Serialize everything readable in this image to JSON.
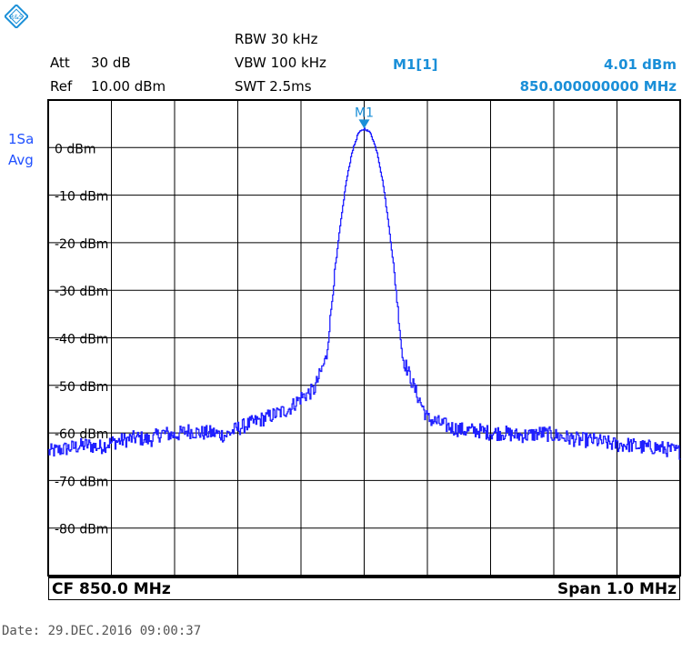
{
  "header": {
    "rbw": "RBW 30 kHz",
    "vbw": "VBW 100 kHz",
    "swt": "SWT 2.5ms",
    "att_label": "Att",
    "att_value": "30 dB",
    "ref_label": "Ref",
    "ref_value": "10.00 dBm"
  },
  "marker": {
    "id": "M1[1]",
    "level": "4.01 dBm",
    "frequency": "850.000000000 MHz",
    "flag": "M1"
  },
  "trace": {
    "line1": "1Sa",
    "line2": "Avg"
  },
  "footer": {
    "cf": "CF 850.0 MHz",
    "span": "Span 1.0 MHz"
  },
  "date": "Date: 29.DEC.2016  09:00:37",
  "colors": {
    "trace": "#1f1fff",
    "marker": "#1a8fd8",
    "grid": "#000000"
  },
  "chart_data": {
    "type": "line",
    "x_center_mhz": 850.0,
    "span_mhz": 1.0,
    "x_range_mhz": [
      849.5,
      850.5
    ],
    "y_range_dbm": [
      -90,
      10
    ],
    "y_ticks": [
      "0 dBm",
      "-10 dBm",
      "-20 dBm",
      "-30 dBm",
      "-40 dBm",
      "-50 dBm",
      "-60 dBm",
      "-70 dBm",
      "-80 dBm"
    ],
    "y_tick_values": [
      0,
      -10,
      -20,
      -30,
      -40,
      -50,
      -60,
      -70,
      -80
    ],
    "grid": true,
    "series": [
      {
        "x": [
          849.5,
          849.52,
          849.54,
          849.56,
          849.58,
          849.6,
          849.62,
          849.64,
          849.66,
          849.68,
          849.7,
          849.72,
          849.74,
          849.76,
          849.78,
          849.8,
          849.82,
          849.84,
          849.86,
          849.88,
          849.9,
          849.92,
          849.94,
          849.95,
          849.96,
          849.97,
          849.98,
          849.99,
          850.0,
          850.01,
          850.02,
          850.03,
          850.04,
          850.05,
          850.06,
          850.08,
          850.1,
          850.12,
          850.14,
          850.16,
          850.18,
          850.2,
          850.22,
          850.24,
          850.26,
          850.28,
          850.3,
          850.32,
          850.34,
          850.36,
          850.38,
          850.4,
          850.42,
          850.44,
          850.46,
          850.48,
          850.5
        ],
        "y": [
          -64,
          -63.5,
          -63,
          -62.5,
          -63,
          -62,
          -61.5,
          -61,
          -61.5,
          -60,
          -60.5,
          -59.5,
          -60,
          -60,
          -60.5,
          -59,
          -58,
          -57,
          -56,
          -55,
          -52.5,
          -51,
          -44,
          -30,
          -18,
          -8,
          -1,
          3,
          4.01,
          3,
          -1,
          -8,
          -18,
          -30,
          -44,
          -51,
          -57,
          -58,
          -59,
          -59.5,
          -59.5,
          -60,
          -60,
          -60.5,
          -60.5,
          -60,
          -60.5,
          -61,
          -61.5,
          -61.5,
          -62,
          -62.5,
          -62.5,
          -63,
          -63,
          -63.5,
          -64
        ]
      }
    ]
  }
}
